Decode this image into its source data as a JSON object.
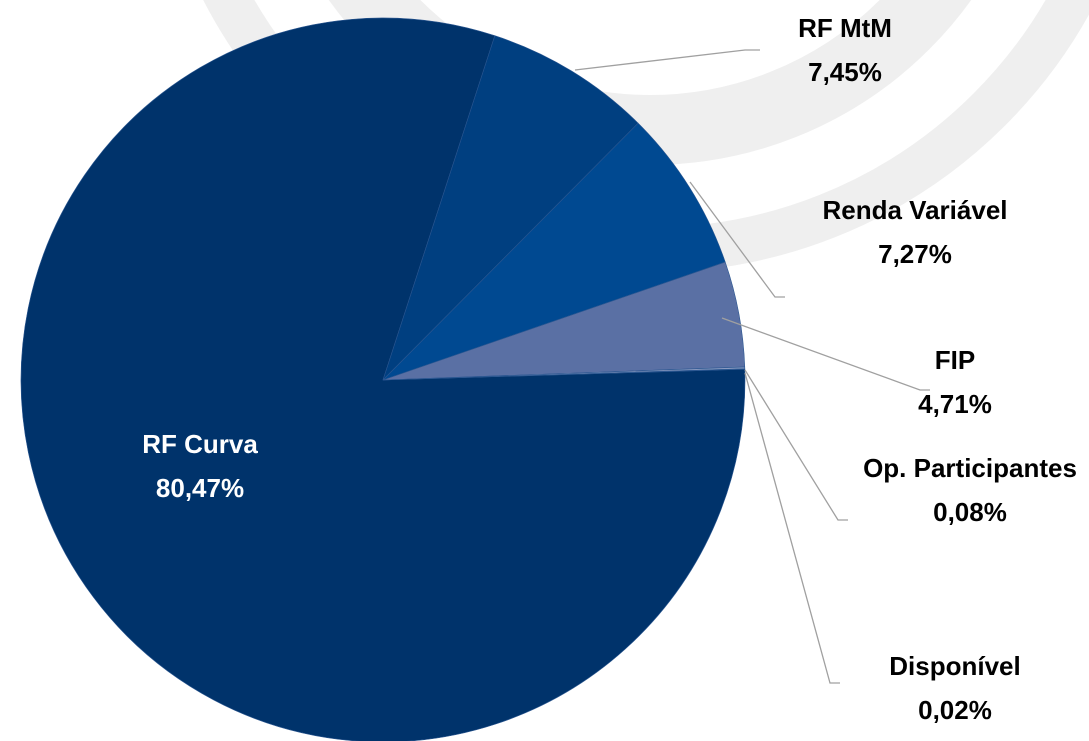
{
  "chart_data": {
    "type": "pie",
    "categories": [
      "RF Curva",
      "RF MtM",
      "Renda Variável",
      "FIP",
      "Op. Participantes",
      "Disponível"
    ],
    "values": [
      80.47,
      7.45,
      7.27,
      4.71,
      0.08,
      0.02
    ],
    "value_labels": [
      "80,47%",
      "7,45%",
      "7,27%",
      "4,71%",
      "0,08%",
      "0,02%"
    ],
    "colors": [
      "#00336b",
      "#003f80",
      "#004991",
      "#5a70a4",
      "#8a9ac0",
      "#b0bcd6"
    ]
  }
}
